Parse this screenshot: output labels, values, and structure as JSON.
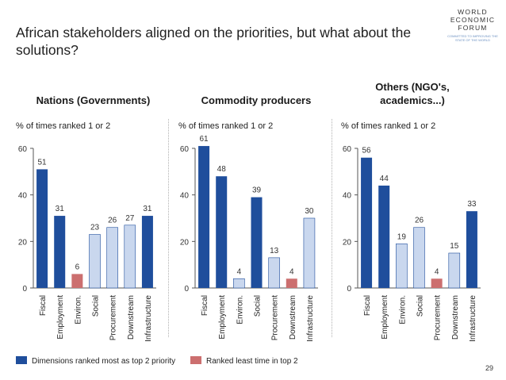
{
  "title": "African stakeholders aligned on the priorities, but what about the solutions?",
  "logo": {
    "name_lines": [
      "WORLD",
      "ECONOMIC",
      "FORUM"
    ],
    "tagline": "COMMITTED TO IMPROVING THE STATE OF THE WORLD"
  },
  "colors": {
    "top": "#1f4e9c",
    "least": "#cc6f6f",
    "other": "#c9d7ee",
    "other_stroke": "#1f4e9c",
    "axis": "#555555"
  },
  "legend": {
    "top_label": "Dimensions ranked most as top 2 priority",
    "least_label": "Ranked least time in top 2"
  },
  "page_number": "29",
  "chart_data": [
    {
      "type": "bar",
      "title": "Nations (Governments)",
      "ylabel": "% of times ranked 1 or 2",
      "categories": [
        "Fiscal",
        "Employment",
        "Environ.",
        "Social",
        "Procurement",
        "Downstream",
        "Infrastructure"
      ],
      "values": [
        51,
        31,
        6,
        23,
        26,
        27,
        31
      ],
      "highlight": [
        "top",
        "top",
        "least",
        "other",
        "other",
        "other",
        "top"
      ],
      "ylim": [
        0,
        60
      ],
      "yticks": [
        0,
        20,
        40,
        60
      ]
    },
    {
      "type": "bar",
      "title": "Commodity producers",
      "ylabel": "% of times ranked 1 or 2",
      "categories": [
        "Fiscal",
        "Employment",
        "Environ.",
        "Social",
        "Procurement",
        "Downstream",
        "Infrastructure"
      ],
      "values": [
        61,
        48,
        4,
        39,
        13,
        4,
        30
      ],
      "highlight": [
        "top",
        "top",
        "other",
        "top",
        "other",
        "least",
        "other"
      ],
      "ylim": [
        0,
        60
      ],
      "yticks": [
        0,
        20,
        40,
        60
      ]
    },
    {
      "type": "bar",
      "title": "Others (NGO's, academics...)",
      "ylabel": "% of times ranked 1 or 2",
      "categories": [
        "Fiscal",
        "Employment",
        "Environ.",
        "Social",
        "Procurement",
        "Downstream",
        "Infrastructure"
      ],
      "values": [
        56,
        44,
        19,
        26,
        4,
        15,
        33
      ],
      "highlight": [
        "top",
        "top",
        "other",
        "other",
        "least",
        "other",
        "top"
      ],
      "ylim": [
        0,
        60
      ],
      "yticks": [
        0,
        20,
        40,
        60
      ]
    }
  ]
}
